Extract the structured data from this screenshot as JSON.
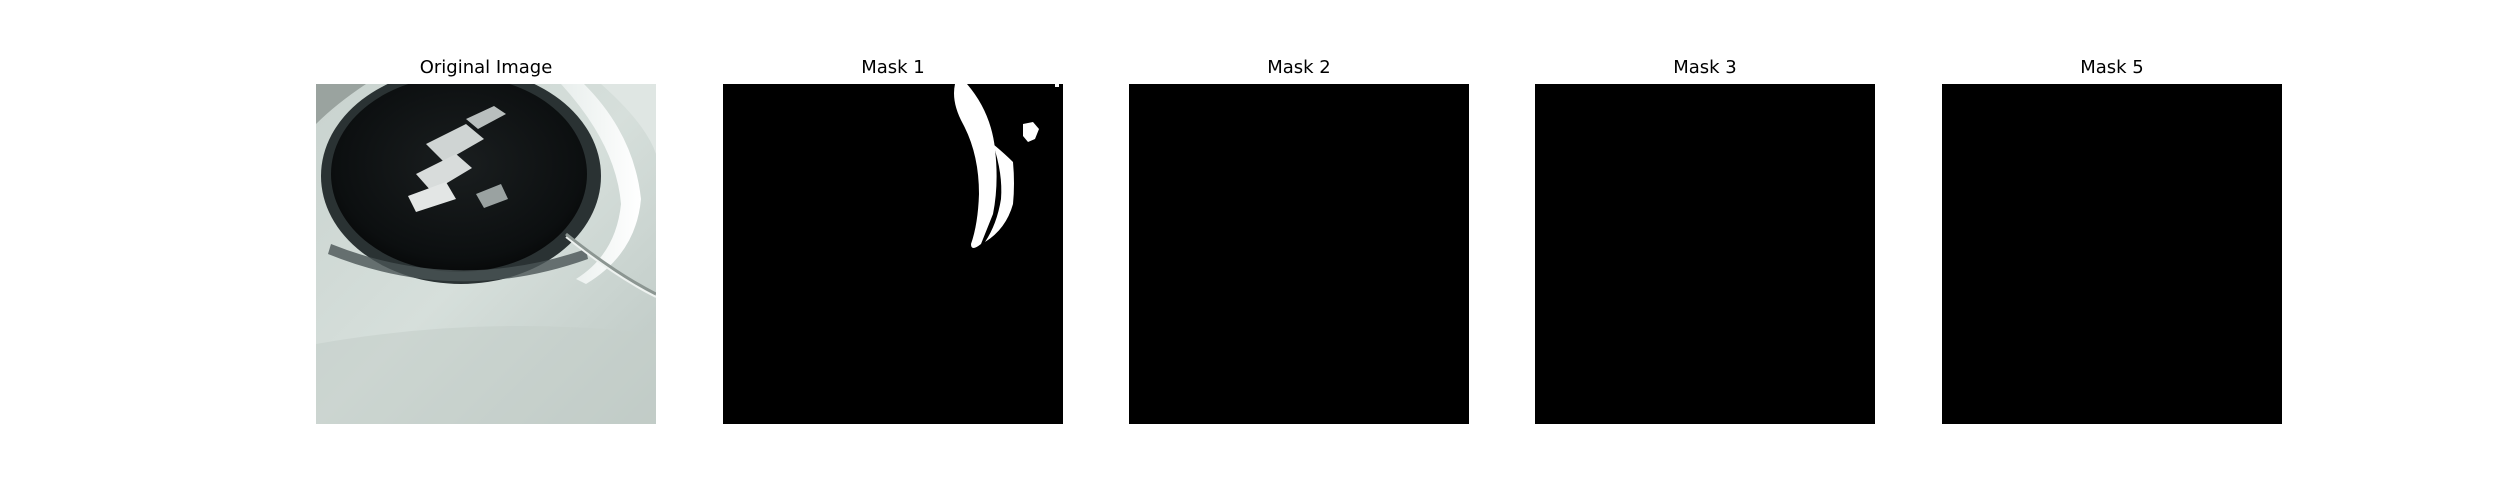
{
  "figure": {
    "panels": [
      {
        "title": "Original Image",
        "image": "photo of a white car headlight housing with dark circular opening"
      },
      {
        "title": "Mask 1",
        "image": "binary mask: black with white crescent shape at upper right"
      },
      {
        "title": "Mask 2",
        "image": "binary mask: all black"
      },
      {
        "title": "Mask 3",
        "image": "binary mask: all black"
      },
      {
        "title": "Mask 5",
        "image": "binary mask: all black"
      }
    ]
  }
}
